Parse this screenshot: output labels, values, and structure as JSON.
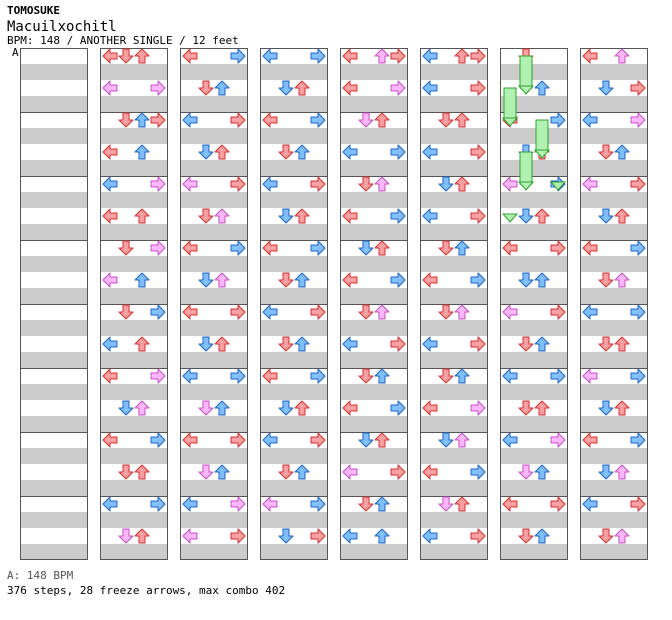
{
  "header": {
    "artist": "TOMOSUKE",
    "title": "Macuilxochitl",
    "meta": "BPM: 148 / ANOTHER SINGLE / 12 feet",
    "marker": "A"
  },
  "footer": {
    "legend": "A: 148 BPM",
    "stats": "376 steps, 28 freeze arrows, max combo 402"
  },
  "colors": {
    "stripe": "#cccccc",
    "frame": "#555555",
    "red_arrow": "#ffa0a0",
    "red_edge": "#cc3030",
    "blue_arrow": "#80c0ff",
    "blue_edge": "#2060c0",
    "pink_arrow": "#ffb8ff",
    "pink_edge": "#c050c0",
    "freeze": "#b0f0b0",
    "freeze_edge": "#30a030"
  },
  "chart_data": {
    "type": "step-chart",
    "columns": 8,
    "measures_per_column": 8,
    "lanes": [
      "left",
      "down",
      "up",
      "right"
    ],
    "columns_data": [
      [],
      [
        [
          0,
          0,
          "l"
        ],
        [
          0,
          1,
          "r"
        ],
        [
          0,
          2,
          "r"
        ],
        [
          1,
          0,
          "p"
        ],
        [
          1,
          3,
          "p"
        ],
        [
          2,
          1,
          "r"
        ],
        [
          2,
          2,
          "b"
        ],
        [
          2,
          3,
          "r"
        ],
        [
          3,
          0,
          "r"
        ],
        [
          3,
          2,
          "b"
        ],
        [
          4,
          0,
          "b"
        ],
        [
          4,
          3,
          "p"
        ],
        [
          5,
          0,
          "r"
        ],
        [
          5,
          2,
          "r"
        ],
        [
          6,
          1,
          "r"
        ],
        [
          6,
          3,
          "p"
        ],
        [
          7,
          0,
          "p"
        ],
        [
          7,
          2,
          "b"
        ],
        [
          8,
          1,
          "r"
        ],
        [
          8,
          3,
          "b"
        ],
        [
          9,
          0,
          "b"
        ],
        [
          9,
          2,
          "r"
        ],
        [
          10,
          0,
          "r"
        ],
        [
          10,
          3,
          "p"
        ],
        [
          11,
          1,
          "b"
        ],
        [
          11,
          2,
          "p"
        ],
        [
          12,
          0,
          "r"
        ],
        [
          12,
          3,
          "b"
        ],
        [
          13,
          1,
          "r"
        ],
        [
          13,
          2,
          "r"
        ],
        [
          14,
          0,
          "b"
        ],
        [
          14,
          3,
          "b"
        ],
        [
          15,
          1,
          "p"
        ],
        [
          15,
          2,
          "r"
        ]
      ],
      [
        [
          0,
          0,
          "r"
        ],
        [
          0,
          3,
          "b"
        ],
        [
          1,
          1,
          "r"
        ],
        [
          1,
          2,
          "b"
        ],
        [
          2,
          0,
          "b"
        ],
        [
          2,
          3,
          "r"
        ],
        [
          3,
          1,
          "b"
        ],
        [
          3,
          2,
          "r"
        ],
        [
          4,
          0,
          "p"
        ],
        [
          4,
          3,
          "r"
        ],
        [
          5,
          1,
          "r"
        ],
        [
          5,
          2,
          "p"
        ],
        [
          6,
          0,
          "r"
        ],
        [
          6,
          3,
          "b"
        ],
        [
          7,
          1,
          "b"
        ],
        [
          7,
          2,
          "p"
        ],
        [
          8,
          0,
          "r"
        ],
        [
          8,
          3,
          "r"
        ],
        [
          9,
          1,
          "b"
        ],
        [
          9,
          2,
          "r"
        ],
        [
          10,
          0,
          "b"
        ],
        [
          10,
          3,
          "b"
        ],
        [
          11,
          1,
          "p"
        ],
        [
          11,
          2,
          "b"
        ],
        [
          12,
          0,
          "r"
        ],
        [
          12,
          3,
          "r"
        ],
        [
          13,
          1,
          "p"
        ],
        [
          13,
          2,
          "b"
        ],
        [
          14,
          0,
          "b"
        ],
        [
          14,
          3,
          "p"
        ],
        [
          15,
          0,
          "p"
        ],
        [
          15,
          3,
          "r"
        ]
      ],
      [
        [
          0,
          0,
          "b"
        ],
        [
          0,
          3,
          "b"
        ],
        [
          1,
          1,
          "b"
        ],
        [
          1,
          2,
          "r"
        ],
        [
          2,
          0,
          "r"
        ],
        [
          2,
          3,
          "b"
        ],
        [
          3,
          1,
          "r"
        ],
        [
          3,
          2,
          "b"
        ],
        [
          4,
          0,
          "b"
        ],
        [
          4,
          3,
          "r"
        ],
        [
          5,
          1,
          "b"
        ],
        [
          5,
          2,
          "r"
        ],
        [
          6,
          0,
          "r"
        ],
        [
          6,
          3,
          "b"
        ],
        [
          7,
          1,
          "r"
        ],
        [
          7,
          2,
          "b"
        ],
        [
          8,
          0,
          "b"
        ],
        [
          8,
          3,
          "r"
        ],
        [
          9,
          1,
          "r"
        ],
        [
          9,
          2,
          "b"
        ],
        [
          10,
          0,
          "r"
        ],
        [
          10,
          3,
          "b"
        ],
        [
          11,
          1,
          "b"
        ],
        [
          11,
          2,
          "r"
        ],
        [
          12,
          0,
          "b"
        ],
        [
          12,
          3,
          "r"
        ],
        [
          13,
          1,
          "r"
        ],
        [
          13,
          2,
          "b"
        ],
        [
          14,
          0,
          "p"
        ],
        [
          14,
          3,
          "b"
        ],
        [
          15,
          1,
          "b"
        ],
        [
          15,
          3,
          "r"
        ]
      ],
      [
        [
          0,
          0,
          "r"
        ],
        [
          0,
          2,
          "p"
        ],
        [
          0,
          3,
          "r"
        ],
        [
          1,
          0,
          "r"
        ],
        [
          1,
          3,
          "p"
        ],
        [
          2,
          1,
          "p"
        ],
        [
          2,
          2,
          "r"
        ],
        [
          3,
          0,
          "b"
        ],
        [
          3,
          3,
          "b"
        ],
        [
          4,
          1,
          "r"
        ],
        [
          4,
          2,
          "p"
        ],
        [
          5,
          0,
          "r"
        ],
        [
          5,
          3,
          "b"
        ],
        [
          6,
          1,
          "b"
        ],
        [
          6,
          2,
          "r"
        ],
        [
          7,
          0,
          "r"
        ],
        [
          7,
          3,
          "b"
        ],
        [
          8,
          1,
          "r"
        ],
        [
          8,
          2,
          "p"
        ],
        [
          9,
          0,
          "b"
        ],
        [
          9,
          3,
          "r"
        ],
        [
          10,
          1,
          "r"
        ],
        [
          10,
          2,
          "b"
        ],
        [
          11,
          0,
          "r"
        ],
        [
          11,
          3,
          "b"
        ],
        [
          12,
          1,
          "b"
        ],
        [
          12,
          2,
          "r"
        ],
        [
          13,
          0,
          "p"
        ],
        [
          13,
          3,
          "r"
        ],
        [
          14,
          1,
          "r"
        ],
        [
          14,
          2,
          "b"
        ],
        [
          15,
          0,
          "b"
        ],
        [
          15,
          2,
          "b"
        ]
      ],
      [
        [
          0,
          0,
          "b"
        ],
        [
          0,
          2,
          "r"
        ],
        [
          0,
          3,
          "r"
        ],
        [
          1,
          0,
          "b"
        ],
        [
          1,
          3,
          "r"
        ],
        [
          2,
          1,
          "r"
        ],
        [
          2,
          2,
          "r"
        ],
        [
          3,
          0,
          "b"
        ],
        [
          3,
          3,
          "r"
        ],
        [
          4,
          1,
          "b"
        ],
        [
          4,
          2,
          "r"
        ],
        [
          5,
          0,
          "b"
        ],
        [
          5,
          3,
          "r"
        ],
        [
          6,
          1,
          "r"
        ],
        [
          6,
          2,
          "b"
        ],
        [
          7,
          0,
          "r"
        ],
        [
          7,
          3,
          "b"
        ],
        [
          8,
          1,
          "r"
        ],
        [
          8,
          2,
          "p"
        ],
        [
          9,
          0,
          "b"
        ],
        [
          9,
          3,
          "r"
        ],
        [
          10,
          1,
          "r"
        ],
        [
          10,
          2,
          "b"
        ],
        [
          11,
          0,
          "r"
        ],
        [
          11,
          3,
          "p"
        ],
        [
          12,
          1,
          "b"
        ],
        [
          12,
          2,
          "p"
        ],
        [
          13,
          0,
          "r"
        ],
        [
          13,
          3,
          "b"
        ],
        [
          14,
          1,
          "p"
        ],
        [
          14,
          2,
          "r"
        ],
        [
          15,
          0,
          "b"
        ],
        [
          15,
          3,
          "r"
        ]
      ],
      [
        [
          0,
          1,
          "r"
        ],
        [
          1,
          2,
          "b"
        ],
        [
          2,
          0,
          "r"
        ],
        [
          2,
          3,
          "b"
        ],
        [
          3,
          1,
          "b"
        ],
        [
          3,
          2,
          "r"
        ],
        [
          4,
          0,
          "p"
        ],
        [
          4,
          3,
          "b"
        ],
        [
          5,
          1,
          "b"
        ],
        [
          5,
          2,
          "r"
        ],
        [
          6,
          0,
          "r"
        ],
        [
          6,
          3,
          "r"
        ],
        [
          7,
          1,
          "b"
        ],
        [
          7,
          2,
          "b"
        ],
        [
          8,
          0,
          "p"
        ],
        [
          8,
          3,
          "r"
        ],
        [
          9,
          1,
          "r"
        ],
        [
          9,
          2,
          "b"
        ],
        [
          10,
          0,
          "b"
        ],
        [
          10,
          3,
          "b"
        ],
        [
          11,
          1,
          "r"
        ],
        [
          11,
          2,
          "r"
        ],
        [
          12,
          0,
          "b"
        ],
        [
          12,
          3,
          "p"
        ],
        [
          13,
          1,
          "p"
        ],
        [
          13,
          2,
          "b"
        ],
        [
          14,
          0,
          "r"
        ],
        [
          14,
          3,
          "r"
        ],
        [
          15,
          1,
          "r"
        ],
        [
          15,
          2,
          "b"
        ]
      ],
      [
        [
          0,
          0,
          "r"
        ],
        [
          0,
          2,
          "p"
        ],
        [
          1,
          1,
          "b"
        ],
        [
          1,
          3,
          "r"
        ],
        [
          2,
          0,
          "b"
        ],
        [
          2,
          3,
          "p"
        ],
        [
          3,
          1,
          "r"
        ],
        [
          3,
          2,
          "b"
        ],
        [
          4,
          0,
          "p"
        ],
        [
          4,
          3,
          "r"
        ],
        [
          5,
          1,
          "b"
        ],
        [
          5,
          2,
          "r"
        ],
        [
          6,
          0,
          "r"
        ],
        [
          6,
          3,
          "b"
        ],
        [
          7,
          1,
          "r"
        ],
        [
          7,
          2,
          "p"
        ],
        [
          8,
          0,
          "b"
        ],
        [
          8,
          3,
          "b"
        ],
        [
          9,
          1,
          "r"
        ],
        [
          9,
          2,
          "r"
        ],
        [
          10,
          0,
          "p"
        ],
        [
          10,
          3,
          "b"
        ],
        [
          11,
          1,
          "b"
        ],
        [
          11,
          2,
          "r"
        ],
        [
          12,
          0,
          "r"
        ],
        [
          12,
          3,
          "b"
        ],
        [
          13,
          1,
          "b"
        ],
        [
          13,
          2,
          "p"
        ],
        [
          14,
          0,
          "b"
        ],
        [
          14,
          3,
          "r"
        ],
        [
          15,
          1,
          "r"
        ],
        [
          15,
          2,
          "p"
        ]
      ]
    ],
    "column_six_freezes": [
      [
        0,
        1,
        0,
        1,
        2
      ],
      [
        1,
        0,
        1,
        2,
        3
      ],
      [
        2,
        2,
        2,
        3,
        4
      ],
      [
        3,
        1,
        3,
        4,
        5
      ],
      [
        4,
        3,
        4,
        4,
        5
      ],
      [
        5,
        0,
        5,
        5,
        6
      ]
    ]
  }
}
